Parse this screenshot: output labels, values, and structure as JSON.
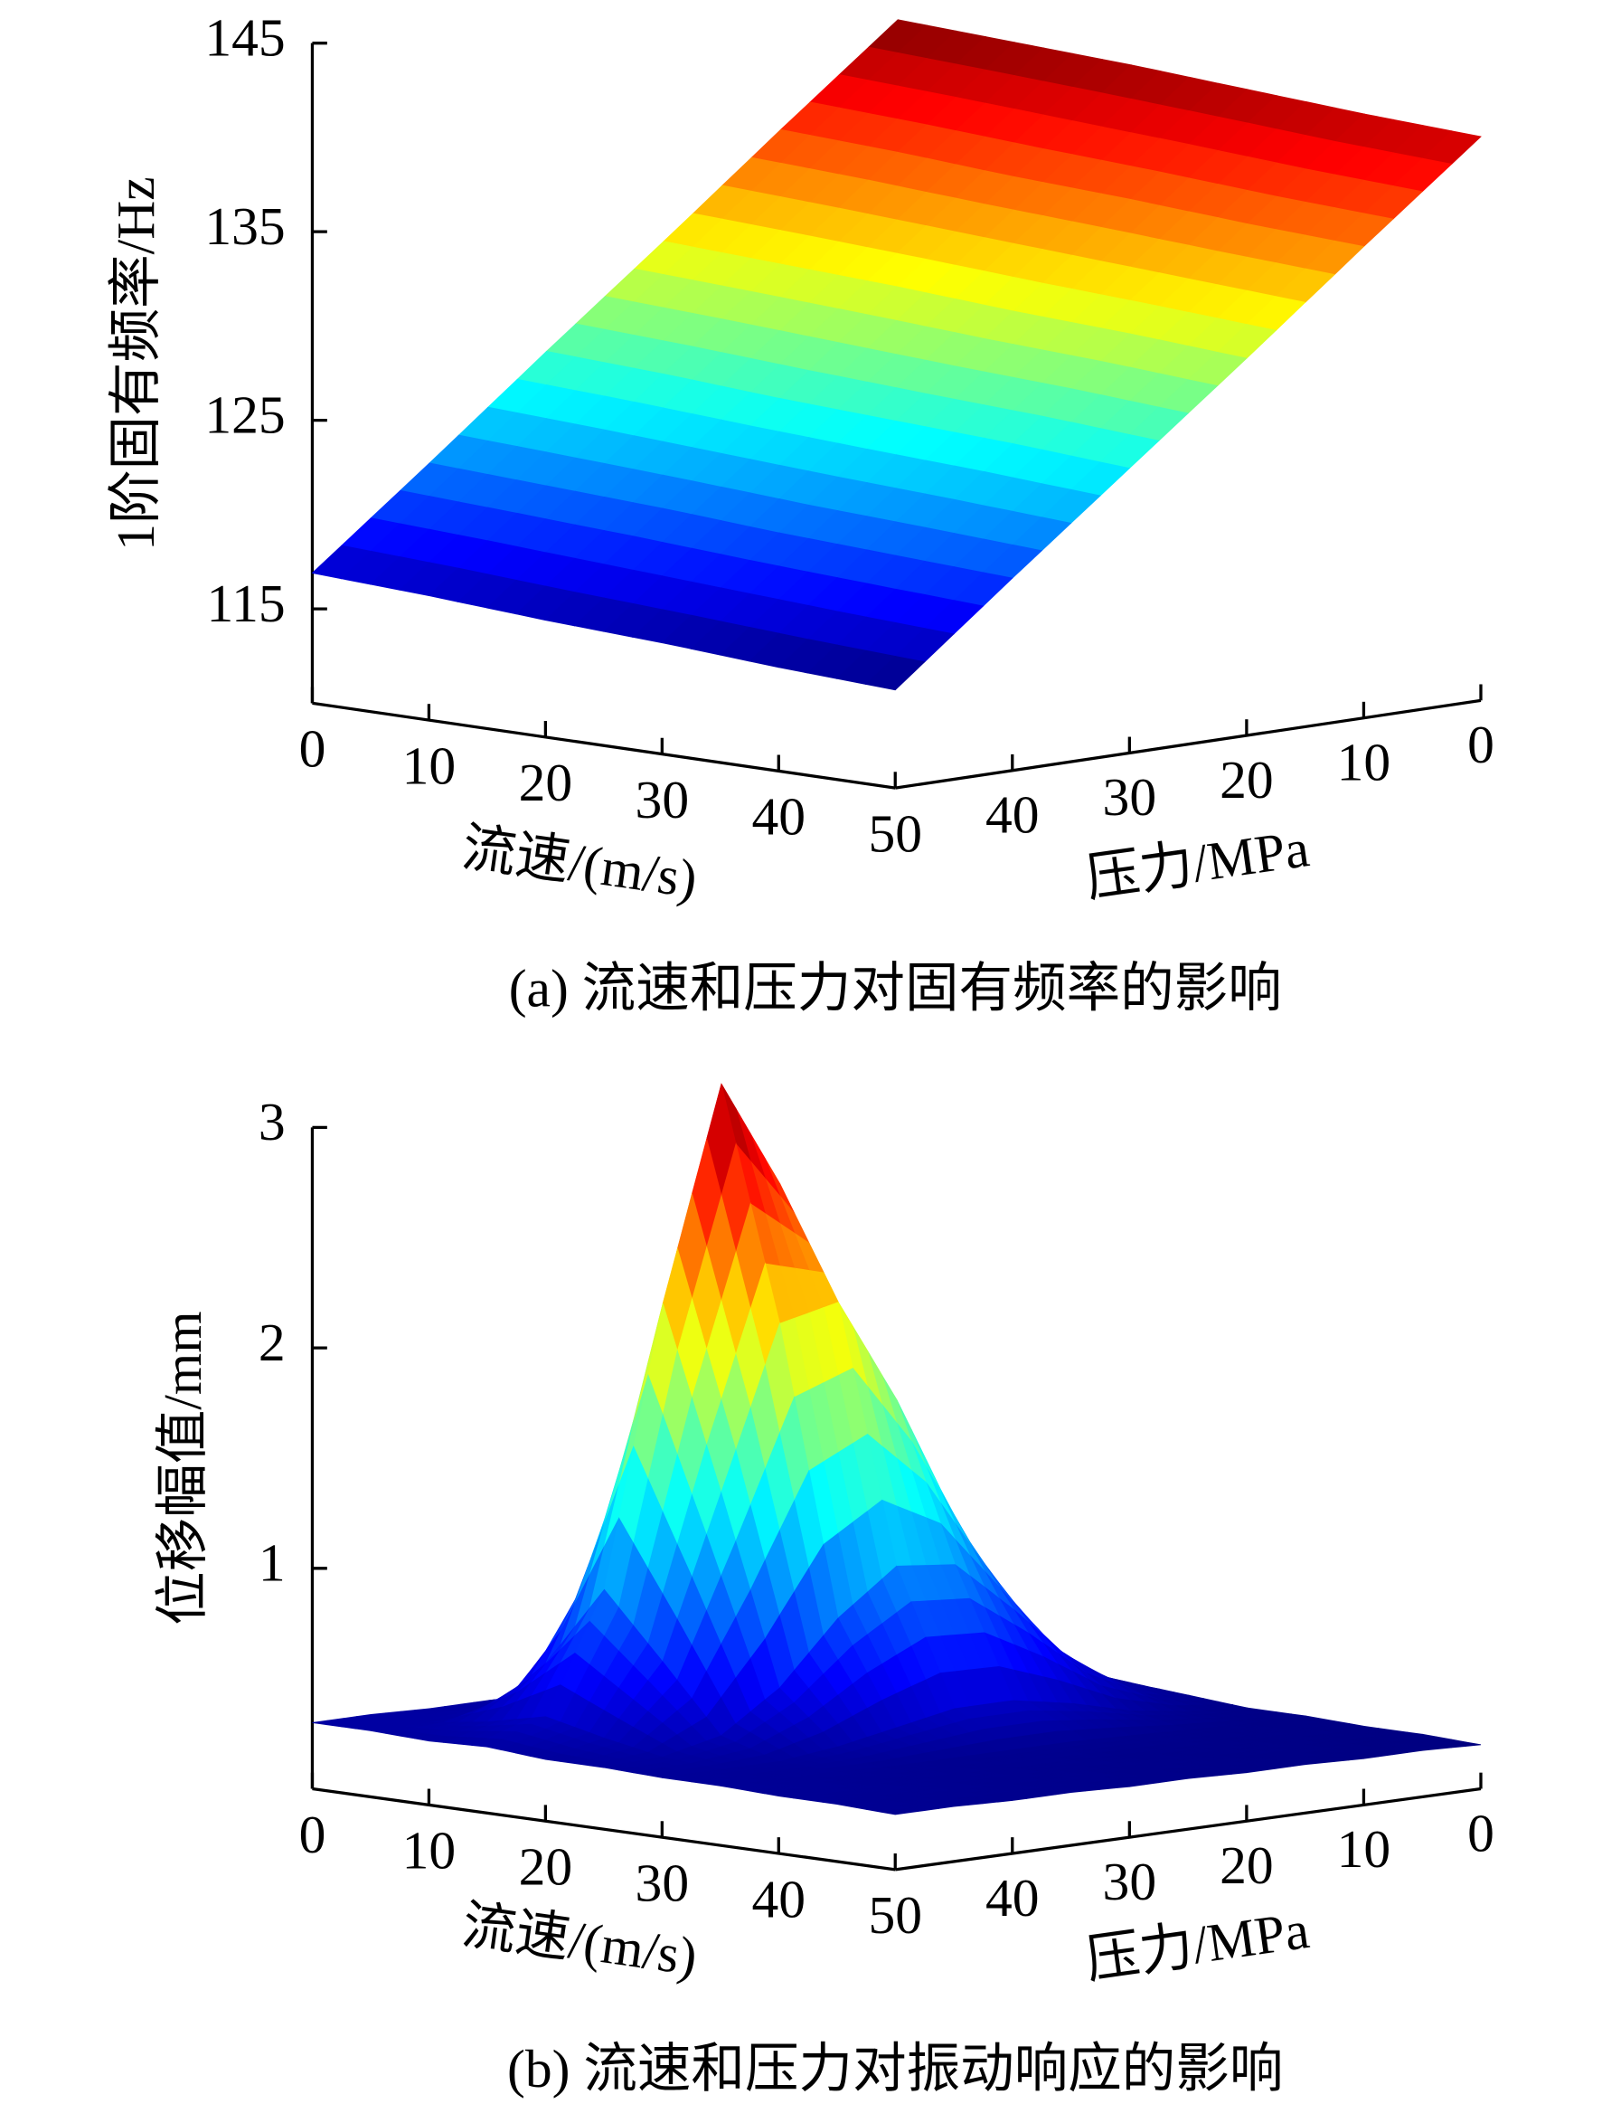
{
  "chart_data": [
    {
      "type": "surface",
      "caption": "(a) 流速和压力对固有频率的影响",
      "xlabel": "流速/(m/s)",
      "ylabel": "压力/MPa",
      "zlabel": "1阶固有频率/Hz",
      "colormap": "jet",
      "x": [
        0,
        10,
        20,
        30,
        40,
        50
      ],
      "y": [
        0,
        10,
        20,
        30,
        40,
        50
      ],
      "z": [
        [
          141.6,
          141.3,
          141.0,
          140.6,
          140.2,
          139.9
        ],
        [
          136.7,
          136.4,
          136.0,
          135.7,
          135.3,
          135.0
        ],
        [
          131.7,
          131.4,
          131.1,
          130.7,
          130.4,
          130.0
        ],
        [
          126.8,
          126.5,
          126.1,
          125.8,
          125.5,
          125.1
        ],
        [
          121.8,
          121.5,
          121.2,
          120.8,
          120.5,
          120.2
        ],
        [
          116.9,
          116.6,
          116.2,
          115.9,
          115.5,
          115.2
        ]
      ],
      "xlim": [
        0,
        50
      ],
      "ylim": [
        0,
        50
      ],
      "zlim": [
        110,
        145
      ],
      "xticks": [
        0,
        10,
        20,
        30,
        40,
        50
      ],
      "yticks": [
        0,
        10,
        20,
        30,
        40
      ],
      "zticks": [
        115,
        125,
        135,
        145
      ]
    },
    {
      "type": "surface",
      "caption": "(b) 流速和压力对振动响应的影响",
      "xlabel": "流速/(m/s)",
      "ylabel": "压力/MPa",
      "zlabel": "位移幅值/mm",
      "colormap": "jet",
      "x": [
        0,
        5,
        10,
        15,
        20,
        25,
        30,
        35,
        40,
        45,
        50
      ],
      "y": [
        0,
        5,
        10,
        15,
        20,
        25,
        30,
        35,
        40,
        45,
        50
      ],
      "z": [
        [
          0.25,
          0.25,
          0.24,
          0.25,
          0.26,
          0.24,
          0.22,
          0.22,
          0.21,
          0.21,
          0.2
        ],
        [
          0.26,
          0.25,
          0.26,
          0.32,
          0.36,
          0.31,
          0.24,
          0.22,
          0.22,
          0.21,
          0.21
        ],
        [
          0.26,
          0.26,
          0.31,
          0.49,
          0.63,
          0.47,
          0.28,
          0.23,
          0.22,
          0.22,
          0.21
        ],
        [
          0.27,
          0.27,
          0.41,
          0.86,
          1.11,
          0.74,
          0.35,
          0.24,
          0.23,
          0.22,
          0.22
        ],
        [
          0.27,
          0.31,
          0.7,
          1.57,
          1.69,
          0.98,
          0.4,
          0.25,
          0.23,
          0.23,
          0.22
        ],
        [
          0.28,
          0.36,
          1.21,
          2.67,
          2.17,
          1.01,
          0.4,
          0.25,
          0.24,
          0.23,
          0.23
        ],
        [
          0.28,
          0.39,
          1.49,
          3.16,
          2.11,
          0.81,
          0.35,
          0.25,
          0.24,
          0.24,
          0.23
        ],
        [
          0.29,
          0.36,
          1.11,
          2.2,
          1.38,
          0.53,
          0.3,
          0.25,
          0.25,
          0.24,
          0.24
        ],
        [
          0.29,
          0.31,
          0.57,
          0.94,
          0.65,
          0.35,
          0.27,
          0.26,
          0.25,
          0.25,
          0.24
        ],
        [
          0.3,
          0.3,
          0.34,
          0.4,
          0.34,
          0.29,
          0.27,
          0.26,
          0.26,
          0.25,
          0.25
        ],
        [
          0.3,
          0.3,
          0.29,
          0.3,
          0.28,
          0.28,
          0.27,
          0.27,
          0.26,
          0.26,
          0.25
        ]
      ],
      "xlim": [
        0,
        50
      ],
      "ylim": [
        0,
        50
      ],
      "zlim": [
        0,
        3
      ],
      "xticks": [
        0,
        10,
        20,
        30,
        40,
        50
      ],
      "yticks": [
        0,
        10,
        20,
        30,
        40
      ],
      "zticks": [
        1,
        2,
        3
      ]
    }
  ]
}
